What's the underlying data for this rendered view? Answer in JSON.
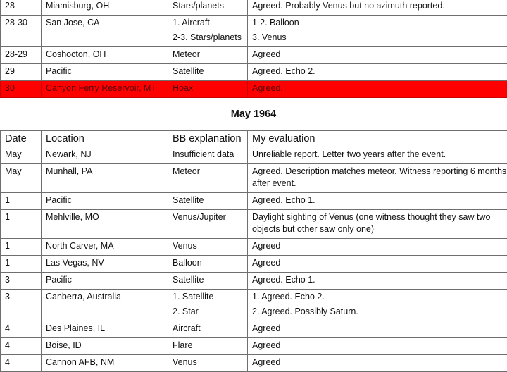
{
  "top_rows": [
    {
      "date": "28",
      "location": "Miamisburg, OH",
      "explanation": "Stars/planets",
      "evaluation": "Agreed. Probably Venus but no azimuth reported."
    },
    {
      "date": "28-30",
      "location": "San Jose, CA",
      "explanation": "1. Aircraft\n2-3. Stars/planets",
      "evaluation": "1-2. Balloon\n3. Venus"
    },
    {
      "date": "28-29",
      "location": "Coshocton, OH",
      "explanation": "Meteor",
      "evaluation": "Agreed"
    },
    {
      "date": "29",
      "location": "Pacific",
      "explanation": "Satellite",
      "evaluation": "Agreed. Echo 2."
    },
    {
      "date": "30",
      "location": "Canyon Ferry Reservoir, MT",
      "explanation": "Hoax",
      "evaluation": "Agreed.",
      "highlight": true
    }
  ],
  "section_title": "May 1964",
  "headers": {
    "date": "Date",
    "location": "Location",
    "explanation": "BB explanation",
    "evaluation": "My evaluation"
  },
  "rows": [
    {
      "date": "May",
      "location": "Newark, NJ",
      "explanation": "Insufficient data",
      "evaluation": "Unreliable report.  Letter two years after the event."
    },
    {
      "date": "May",
      "location": "Munhall, PA",
      "explanation": "Meteor",
      "evaluation": "Agreed.  Description matches meteor. Witness reporting 6 months after event."
    },
    {
      "date": "1",
      "location": "Pacific",
      "explanation": "Satellite",
      "evaluation": "Agreed. Echo 1."
    },
    {
      "date": "1",
      "location": "Mehlville, MO",
      "explanation": "Venus/Jupiter",
      "evaluation": "Daylight sighting of Venus (one witness thought they saw two objects but other saw only one)"
    },
    {
      "date": "1",
      "location": "North Carver, MA",
      "explanation": "Venus",
      "evaluation": "Agreed"
    },
    {
      "date": "1",
      "location": "Las Vegas, NV",
      "explanation": "Balloon",
      "evaluation": "Agreed"
    },
    {
      "date": "3",
      "location": "Pacific",
      "explanation": "Satellite",
      "evaluation": "Agreed. Echo 1."
    },
    {
      "date": "3",
      "location": "Canberra, Australia",
      "explanation": "1. Satellite\n2. Star",
      "evaluation": "1. Agreed. Echo 2.\n2. Agreed. Possibly Saturn."
    },
    {
      "date": "4",
      "location": "Des Plaines, IL",
      "explanation": "Aircraft",
      "evaluation": "Agreed"
    },
    {
      "date": "4",
      "location": "Boise, ID",
      "explanation": "Flare",
      "evaluation": "Agreed"
    },
    {
      "date": "4",
      "location": "Cannon AFB, NM",
      "explanation": "Venus",
      "evaluation": "Agreed"
    }
  ]
}
